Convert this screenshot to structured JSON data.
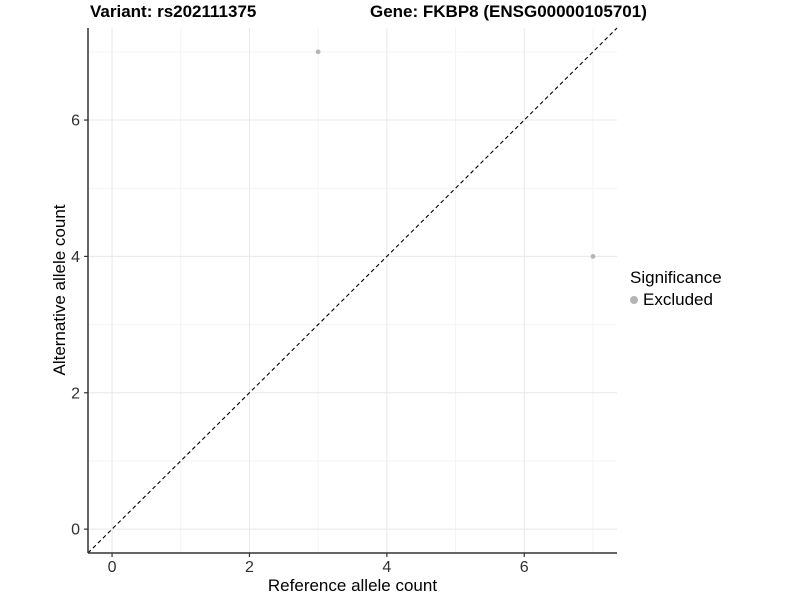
{
  "header": {
    "variant_title": "Variant: rs202111375",
    "gene_title": "Gene: FKBP8 (ENSG00000105701)"
  },
  "chart_data": {
    "type": "scatter",
    "xlabel": "Reference allele count",
    "ylabel": "Alternative allele count",
    "xlim": [
      -0.35,
      7.35
    ],
    "ylim": [
      -0.35,
      7.35
    ],
    "x_major_ticks": [
      0,
      2,
      4,
      6
    ],
    "y_major_ticks": [
      0,
      2,
      4,
      6
    ],
    "x_minor_gridlines": [
      1,
      3,
      5,
      7
    ],
    "y_minor_gridlines": [
      1,
      3,
      5,
      7
    ],
    "grid": "on",
    "identity_line": {
      "style": "dashed",
      "equation": "y = x"
    },
    "series": [
      {
        "name": "Excluded",
        "color": "#b5b5b5",
        "points": [
          {
            "x": 3,
            "y": 7
          },
          {
            "x": 7,
            "y": 4
          }
        ]
      }
    ],
    "legend": {
      "title": "Significance",
      "position": "right",
      "entries": [
        {
          "label": "Excluded",
          "color": "#b5b5b5"
        }
      ]
    }
  },
  "colors": {
    "background": "#ffffff",
    "axis_line": "#333333",
    "tick_label": "#303030",
    "grid_major": "#e8e8e8",
    "grid_minor": "#f4f4f4",
    "identity_line": "#000000",
    "point": "#b5b5b5"
  }
}
